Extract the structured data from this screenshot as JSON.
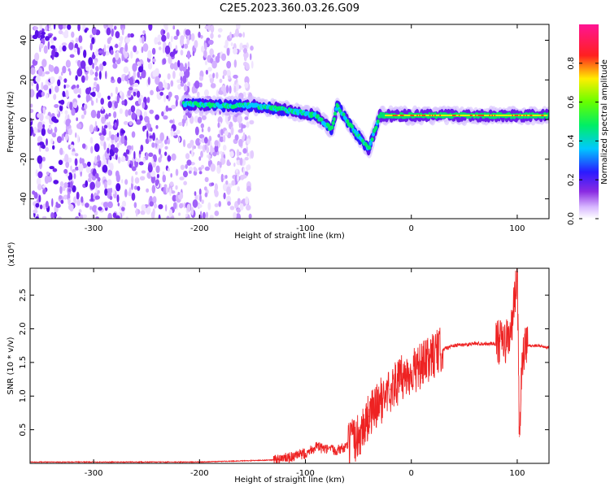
{
  "title": "C2E5.2023.360.03.26.G09",
  "colors": {
    "snr_line": "#ee2222",
    "axis": "#000000",
    "background": "#ffffff"
  },
  "chart_data": [
    {
      "type": "heatmap",
      "xlabel": "Height of straight line (km)",
      "ylabel": "Frequency (Hz)",
      "xlim": [
        -360,
        130
      ],
      "ylim": [
        -50,
        48
      ],
      "x_ticks": [
        "-300",
        "-200",
        "-100",
        "0",
        "100"
      ],
      "y_ticks": [
        "-40",
        "-20",
        "0",
        "20",
        "40"
      ],
      "colorbar": {
        "label": "Normalized spectral amplitude",
        "range": [
          0,
          1
        ],
        "ticks": [
          "0.0",
          "0.2",
          "0.4",
          "0.6",
          "0.8"
        ],
        "colormap": "rainbow (purple-blue-cyan-green-yellow-red-magenta)"
      },
      "features": {
        "noise_region_x": [
          -360,
          -150
        ],
        "signal_band_frequency_hz": 2,
        "signal_track": [
          {
            "x": -215,
            "y": 8
          },
          {
            "x": -180,
            "y": 7
          },
          {
            "x": -150,
            "y": 7
          },
          {
            "x": -120,
            "y": 5
          },
          {
            "x": -90,
            "y": 2
          },
          {
            "x": -75,
            "y": -5
          },
          {
            "x": -70,
            "y": 7
          },
          {
            "x": -55,
            "y": -5
          },
          {
            "x": -40,
            "y": -15
          },
          {
            "x": -30,
            "y": 2
          },
          {
            "x": 0,
            "y": 2
          },
          {
            "x": 50,
            "y": 2
          },
          {
            "x": 130,
            "y": 2
          }
        ]
      }
    },
    {
      "type": "line",
      "xlabel": "Height of straight line (km)",
      "ylabel": "SNR (10 * v/v)",
      "y_multiplier": "(x10⁴)",
      "xlim": [
        -360,
        130
      ],
      "ylim": [
        0,
        2.9
      ],
      "x_ticks": [
        "-300",
        "-200",
        "-100",
        "0",
        "100"
      ],
      "y_ticks": [
        "0.5",
        "1.0",
        "1.5",
        "2.0",
        "2.5"
      ],
      "series": [
        {
          "x": [
            -360,
            -300,
            -200,
            -130,
            -110,
            -100,
            -90,
            -80,
            -70,
            -60,
            -50,
            -40,
            -30,
            -20,
            -10,
            0,
            10,
            20,
            30,
            40,
            60,
            80,
            90,
            95,
            98,
            100,
            102,
            105,
            110,
            120,
            130
          ],
          "y": [
            0.02,
            0.02,
            0.02,
            0.05,
            0.1,
            0.15,
            0.25,
            0.2,
            0.2,
            0.25,
            0.4,
            0.7,
            0.9,
            1.1,
            1.25,
            1.35,
            1.45,
            1.6,
            1.7,
            1.75,
            1.78,
            1.78,
            1.8,
            2.0,
            2.5,
            2.85,
            0.4,
            1.6,
            1.75,
            1.75,
            1.72
          ]
        }
      ]
    }
  ]
}
